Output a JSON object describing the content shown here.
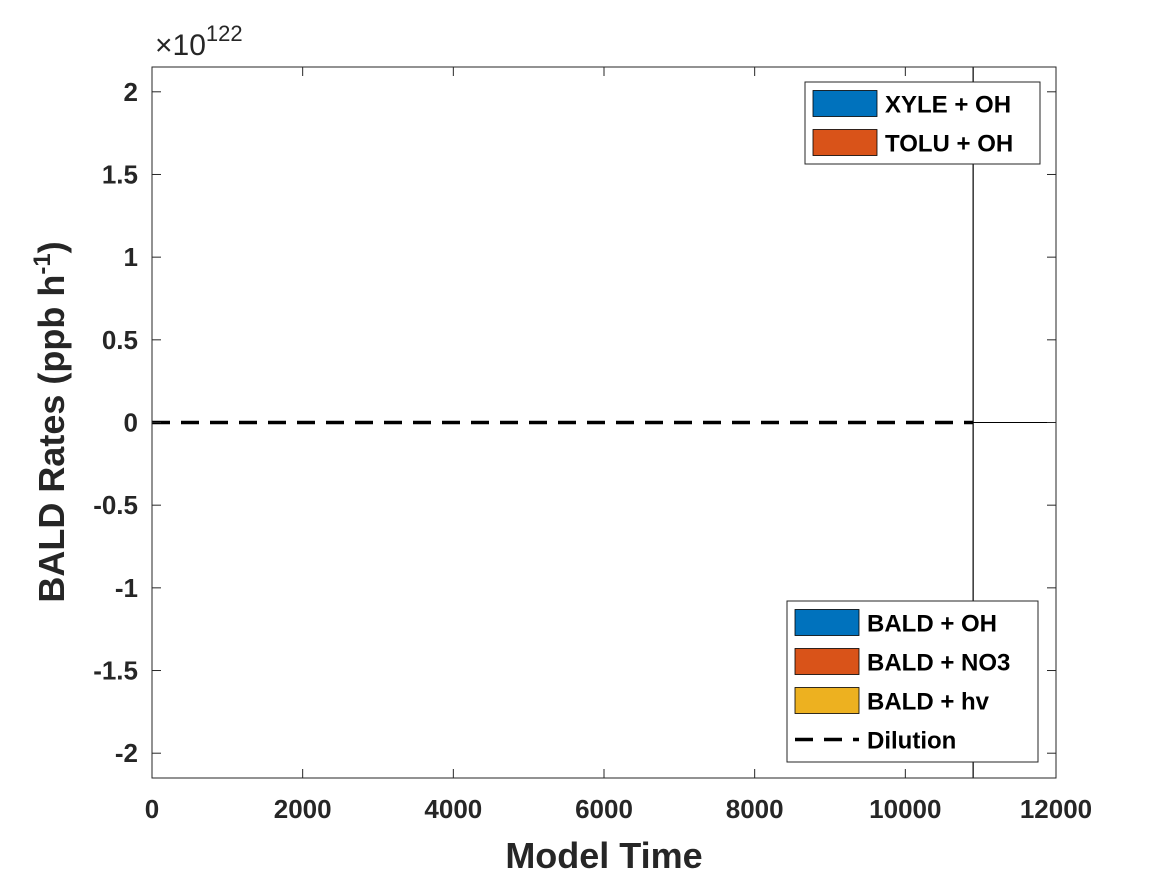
{
  "chart_data": {
    "type": "area",
    "xlabel": "Model Time",
    "ylabel": "BALD Rates (ppb h",
    "ylabel_sup": "-1",
    "ylabel_close": ")",
    "y_multiplier_prefix": "×10",
    "y_multiplier_exponent": "122",
    "xlim": [
      0,
      12000
    ],
    "ylim": [
      -2.15,
      2.15
    ],
    "x_ticks": [
      0,
      2000,
      4000,
      6000,
      8000,
      10000,
      12000
    ],
    "y_ticks": [
      -2,
      -1.5,
      -1,
      -0.5,
      0,
      0.5,
      1,
      1.5,
      2
    ],
    "x_tick_labels": [
      "0",
      "2000",
      "4000",
      "6000",
      "8000",
      "10000",
      "12000"
    ],
    "y_tick_labels": [
      "-2",
      "-1.5",
      "-1",
      "-0.5",
      "0",
      "0.5",
      "1",
      "1.5",
      "2"
    ],
    "grid": false,
    "spike": {
      "x": 10900,
      "y_top": 2.15,
      "y_bottom": -2.15
    },
    "production_legend": {
      "placement": "top-right",
      "entries": [
        {
          "name": "XYLE + OH",
          "color": "#0072BD",
          "style": "patch"
        },
        {
          "name": "TOLU + OH",
          "color": "#D95319",
          "style": "patch"
        }
      ]
    },
    "loss_legend": {
      "placement": "bottom-right",
      "entries": [
        {
          "name": "BALD + OH",
          "color": "#0072BD",
          "style": "patch"
        },
        {
          "name": "BALD + NO3",
          "color": "#D95319",
          "style": "patch"
        },
        {
          "name": "BALD + hv",
          "color": "#EDB120",
          "style": "patch"
        },
        {
          "name": "Dilution",
          "color": "#000000",
          "style": "dash"
        }
      ]
    },
    "series": [
      {
        "name": "Dilution",
        "style": "dashed",
        "color": "#000000",
        "x": [
          0,
          10900
        ],
        "y": [
          0,
          0
        ]
      }
    ]
  }
}
